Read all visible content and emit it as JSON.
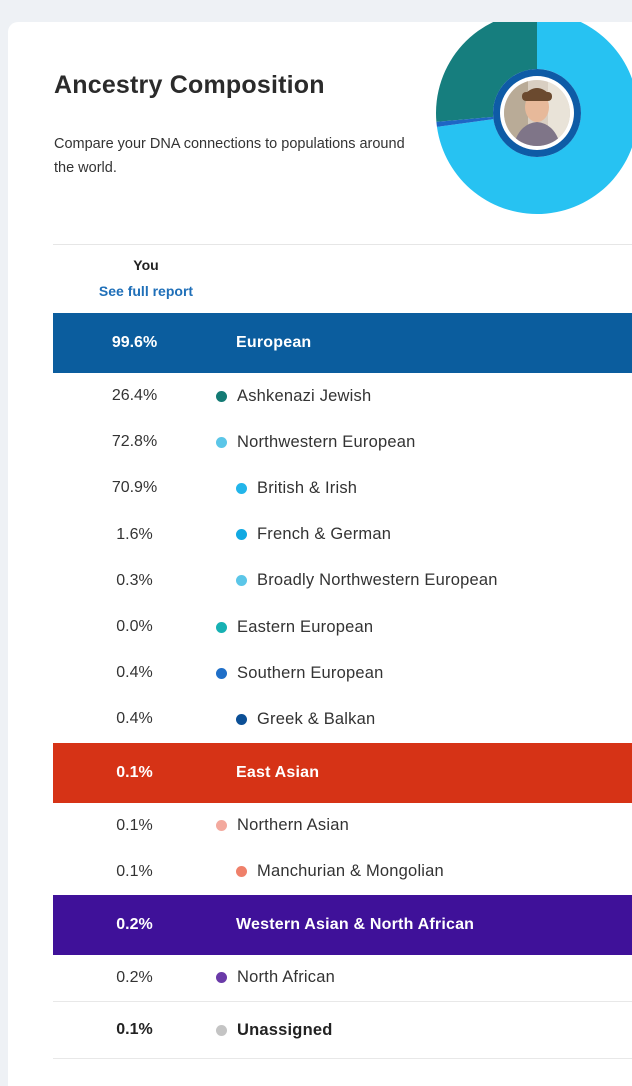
{
  "header": {
    "title": "Ancestry Composition",
    "subtitle": "Compare your DNA connections to populations around the world."
  },
  "column": {
    "you_label": "You",
    "full_report_link": "See full report"
  },
  "colors": {
    "european": "#0b5d9e",
    "east_asian": "#d63316",
    "western_asian_north_african": "#3f1199"
  },
  "groups": [
    {
      "name": "European",
      "pct": "99.6%",
      "color": "#0b5d9e",
      "rows": [
        {
          "pct": "26.4%",
          "name": "Ashkenazi Jewish",
          "dot": "#137a74",
          "level": 1
        },
        {
          "pct": "72.8%",
          "name": "Northwestern European",
          "dot": "#5bc6e8",
          "level": 1
        },
        {
          "pct": "70.9%",
          "name": "British & Irish",
          "dot": "#22b5ea",
          "level": 2
        },
        {
          "pct": "1.6%",
          "name": "French & German",
          "dot": "#11a9e2",
          "level": 2
        },
        {
          "pct": "0.3%",
          "name": "Broadly Northwestern European",
          "dot": "#5bc6e8",
          "level": 2
        },
        {
          "pct": "0.0%",
          "name": "Eastern European",
          "dot": "#17b1b3",
          "level": 1
        },
        {
          "pct": "0.4%",
          "name": "Southern European",
          "dot": "#1f6fc8",
          "level": 1
        },
        {
          "pct": "0.4%",
          "name": "Greek & Balkan",
          "dot": "#0b4f96",
          "level": 2
        }
      ]
    },
    {
      "name": "East Asian",
      "pct": "0.1%",
      "color": "#d63316",
      "rows": [
        {
          "pct": "0.1%",
          "name": "Northern Asian",
          "dot": "#f3a99e",
          "level": 1
        },
        {
          "pct": "0.1%",
          "name": "Manchurian & Mongolian",
          "dot": "#ef806a",
          "level": 2
        }
      ]
    },
    {
      "name": "Western Asian & North African",
      "pct": "0.2%",
      "color": "#3f1199",
      "rows": [
        {
          "pct": "0.2%",
          "name": "North African",
          "dot": "#6a3aa8",
          "level": 1
        }
      ]
    }
  ],
  "unassigned": {
    "pct": "0.1%",
    "name": "Unassigned",
    "dot": "#c4c4c4"
  },
  "donut": {
    "segments": [
      {
        "name": "Ashkenazi Jewish",
        "fraction": 0.264,
        "color": "#167e7e"
      },
      {
        "name": "Northwestern European",
        "fraction": 0.728,
        "color": "#27c2f2"
      },
      {
        "name": "Other",
        "fraction": 0.008,
        "color": "#1e66c4"
      }
    ],
    "ring_color": "#0e5ba6",
    "avatar": "avatar-photo"
  }
}
